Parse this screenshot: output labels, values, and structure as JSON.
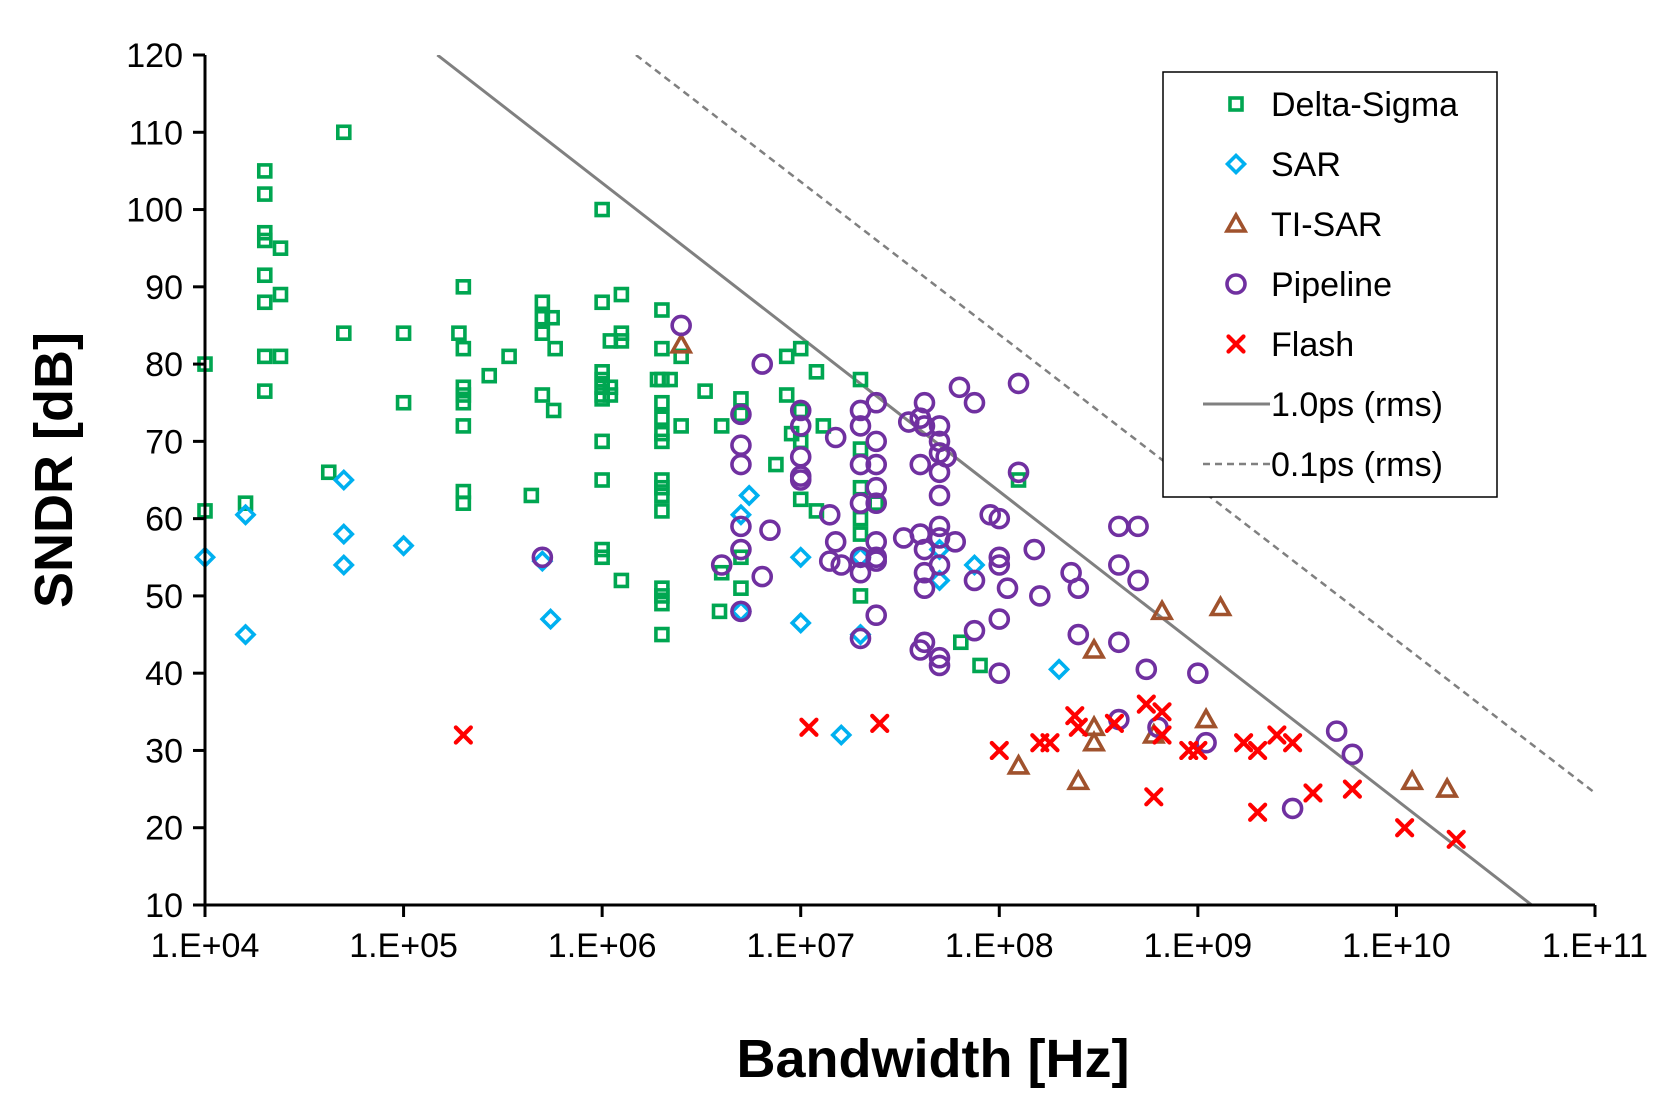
{
  "chart_data": {
    "type": "scatter",
    "title": "",
    "xlabel": "Bandwidth [Hz]",
    "ylabel": "SNDR [dB]",
    "x_scale": "log",
    "xlim": [
      10000,
      100000000000
    ],
    "ylim": [
      10,
      120
    ],
    "x_ticks": [
      {
        "value": 10000,
        "label": "1.E+04"
      },
      {
        "value": 100000,
        "label": "1.E+05"
      },
      {
        "value": 1000000,
        "label": "1.E+06"
      },
      {
        "value": 10000000,
        "label": "1.E+07"
      },
      {
        "value": 100000000,
        "label": "1.E+08"
      },
      {
        "value": 1000000000,
        "label": "1.E+09"
      },
      {
        "value": 10000000000,
        "label": "1.E+10"
      },
      {
        "value": 100000000000,
        "label": "1.E+11"
      }
    ],
    "y_ticks": [
      {
        "value": 10,
        "label": "10"
      },
      {
        "value": 20,
        "label": "20"
      },
      {
        "value": 30,
        "label": "30"
      },
      {
        "value": 40,
        "label": "40"
      },
      {
        "value": 50,
        "label": "50"
      },
      {
        "value": 60,
        "label": "60"
      },
      {
        "value": 70,
        "label": "70"
      },
      {
        "value": 80,
        "label": "80"
      },
      {
        "value": 90,
        "label": "90"
      },
      {
        "value": 100,
        "label": "100"
      },
      {
        "value": 110,
        "label": "110"
      },
      {
        "value": 120,
        "label": "120"
      }
    ],
    "grid": false,
    "legend_position": "top-right",
    "series": [
      {
        "name": "Delta-Sigma",
        "marker": "square",
        "color": "#00a651",
        "points": [
          [
            10000,
            80
          ],
          [
            10000,
            61
          ],
          [
            16000,
            62
          ],
          [
            20000,
            105
          ],
          [
            20000,
            102
          ],
          [
            20000,
            97
          ],
          [
            20000,
            96
          ],
          [
            20000,
            91.5
          ],
          [
            20000,
            88
          ],
          [
            20000,
            81
          ],
          [
            20000,
            76.5
          ],
          [
            24000,
            95
          ],
          [
            24000,
            89
          ],
          [
            24000,
            81
          ],
          [
            42000,
            66
          ],
          [
            50000,
            110
          ],
          [
            50000,
            84
          ],
          [
            100000,
            84
          ],
          [
            100000,
            75
          ],
          [
            190000,
            84
          ],
          [
            200000,
            90
          ],
          [
            200000,
            82
          ],
          [
            200000,
            77
          ],
          [
            200000,
            76
          ],
          [
            200000,
            75
          ],
          [
            200000,
            72
          ],
          [
            200000,
            63.5
          ],
          [
            200000,
            62
          ],
          [
            270000,
            78.5
          ],
          [
            340000,
            81
          ],
          [
            440000,
            63
          ],
          [
            500000,
            88
          ],
          [
            500000,
            86
          ],
          [
            500000,
            84
          ],
          [
            500000,
            76
          ],
          [
            560000,
            86
          ],
          [
            580000,
            82
          ],
          [
            570000,
            74
          ],
          [
            1000000,
            100
          ],
          [
            1000000,
            88
          ],
          [
            1000000,
            79
          ],
          [
            1000000,
            78
          ],
          [
            1000000,
            77
          ],
          [
            1000000,
            76
          ],
          [
            1000000,
            75.5
          ],
          [
            1000000,
            70
          ],
          [
            1000000,
            65
          ],
          [
            1000000,
            56
          ],
          [
            1000000,
            55
          ],
          [
            1100000,
            83
          ],
          [
            1100000,
            77
          ],
          [
            1100000,
            76
          ],
          [
            1250000,
            89
          ],
          [
            1250000,
            84
          ],
          [
            1250000,
            83
          ],
          [
            1250000,
            52
          ],
          [
            1900000,
            78
          ],
          [
            2000000,
            87
          ],
          [
            2000000,
            82
          ],
          [
            2000000,
            78
          ],
          [
            2000000,
            75
          ],
          [
            2000000,
            73
          ],
          [
            2000000,
            71
          ],
          [
            2000000,
            70
          ],
          [
            2000000,
            65
          ],
          [
            2000000,
            64
          ],
          [
            2000000,
            63
          ],
          [
            2000000,
            61
          ],
          [
            2000000,
            51
          ],
          [
            2000000,
            50
          ],
          [
            2000000,
            49
          ],
          [
            2000000,
            45
          ],
          [
            2200000,
            78
          ],
          [
            2500000,
            81
          ],
          [
            2500000,
            72
          ],
          [
            3300000,
            76.5
          ],
          [
            3900000,
            48
          ],
          [
            4000000,
            72
          ],
          [
            4000000,
            53
          ],
          [
            5000000,
            75.5
          ],
          [
            5000000,
            73.5
          ],
          [
            5000000,
            55
          ],
          [
            5000000,
            51
          ],
          [
            7500000,
            67
          ],
          [
            8500000,
            81
          ],
          [
            8500000,
            76
          ],
          [
            9000000,
            71
          ],
          [
            10000000,
            82
          ],
          [
            10000000,
            74
          ],
          [
            10000000,
            70
          ],
          [
            10000000,
            62.5
          ],
          [
            12000000,
            79
          ],
          [
            12000000,
            61
          ],
          [
            13000000,
            72
          ],
          [
            20000000,
            78
          ],
          [
            20000000,
            69
          ],
          [
            20000000,
            64
          ],
          [
            20000000,
            60
          ],
          [
            20000000,
            58
          ],
          [
            20000000,
            50
          ],
          [
            24000000,
            62
          ],
          [
            64000000,
            44
          ],
          [
            80000000,
            41
          ],
          [
            125000000,
            65
          ]
        ]
      },
      {
        "name": "SAR",
        "marker": "diamond",
        "color": "#00b0f0",
        "points": [
          [
            10000,
            55
          ],
          [
            16000,
            60.5
          ],
          [
            16000,
            45
          ],
          [
            50000,
            65
          ],
          [
            50000,
            58
          ],
          [
            50000,
            54
          ],
          [
            100000,
            56.5
          ],
          [
            500000,
            54.5
          ],
          [
            550000,
            47
          ],
          [
            5000000,
            60.5
          ],
          [
            5000000,
            48
          ],
          [
            5500000,
            63
          ],
          [
            10000000,
            55
          ],
          [
            10000000,
            46.5
          ],
          [
            16000000,
            32
          ],
          [
            20000000,
            55
          ],
          [
            20000000,
            45
          ],
          [
            50000000,
            56
          ],
          [
            50000000,
            52
          ],
          [
            75000000,
            54
          ],
          [
            200000000,
            40.5
          ]
        ]
      },
      {
        "name": "TI-SAR",
        "marker": "triangle",
        "color": "#a0522d",
        "points": [
          [
            2500000,
            82.5
          ],
          [
            125000000,
            28
          ],
          [
            250000000,
            26
          ],
          [
            300000000,
            43
          ],
          [
            300000000,
            33
          ],
          [
            300000000,
            31
          ],
          [
            600000000,
            32
          ],
          [
            660000000,
            48
          ],
          [
            1100000000,
            34
          ],
          [
            1300000000,
            48.5
          ],
          [
            12000000000,
            26
          ],
          [
            18000000000,
            25
          ]
        ]
      },
      {
        "name": "Pipeline",
        "marker": "circle",
        "color": "#7030a0",
        "points": [
          [
            500000,
            55
          ],
          [
            2500000,
            85
          ],
          [
            4000000,
            54
          ],
          [
            5000000,
            73.5
          ],
          [
            5000000,
            69.5
          ],
          [
            5000000,
            67
          ],
          [
            5000000,
            59
          ],
          [
            5000000,
            56
          ],
          [
            5000000,
            48
          ],
          [
            6400000,
            80
          ],
          [
            6400000,
            52.5
          ],
          [
            7000000,
            58.5
          ],
          [
            10000000,
            74
          ],
          [
            10000000,
            72
          ],
          [
            10000000,
            68
          ],
          [
            10000000,
            65.5
          ],
          [
            10000000,
            65
          ],
          [
            14000000,
            54.5
          ],
          [
            14000000,
            60.5
          ],
          [
            15000000,
            70.5
          ],
          [
            15000000,
            57
          ],
          [
            16000000,
            54
          ],
          [
            20000000,
            74
          ],
          [
            20000000,
            72
          ],
          [
            20000000,
            67
          ],
          [
            20000000,
            62
          ],
          [
            20000000,
            55
          ],
          [
            20000000,
            53
          ],
          [
            20000000,
            44.5
          ],
          [
            24000000,
            75
          ],
          [
            24000000,
            70
          ],
          [
            24000000,
            67
          ],
          [
            24000000,
            64
          ],
          [
            24000000,
            62
          ],
          [
            24000000,
            57
          ],
          [
            24000000,
            55
          ],
          [
            24000000,
            54.5
          ],
          [
            24000000,
            47.5
          ],
          [
            33000000,
            57.5
          ],
          [
            35000000,
            72.5
          ],
          [
            40000000,
            73
          ],
          [
            40000000,
            67
          ],
          [
            40000000,
            58
          ],
          [
            40000000,
            43
          ],
          [
            42000000,
            75
          ],
          [
            42000000,
            72
          ],
          [
            42000000,
            56
          ],
          [
            42000000,
            53
          ],
          [
            42000000,
            51
          ],
          [
            42000000,
            44
          ],
          [
            50000000,
            72
          ],
          [
            50000000,
            70
          ],
          [
            50000000,
            68.5
          ],
          [
            50000000,
            66
          ],
          [
            50000000,
            63
          ],
          [
            50000000,
            59
          ],
          [
            50000000,
            57.5
          ],
          [
            50000000,
            54
          ],
          [
            50000000,
            42
          ],
          [
            50000000,
            41
          ],
          [
            54000000,
            68
          ],
          [
            60000000,
            57
          ],
          [
            63000000,
            77
          ],
          [
            75000000,
            75
          ],
          [
            75000000,
            52
          ],
          [
            75000000,
            45.5
          ],
          [
            90000000,
            60.5
          ],
          [
            100000000,
            60
          ],
          [
            100000000,
            55
          ],
          [
            100000000,
            54
          ],
          [
            100000000,
            47
          ],
          [
            100000000,
            40
          ],
          [
            110000000,
            51
          ],
          [
            125000000,
            77.5
          ],
          [
            125000000,
            66
          ],
          [
            150000000,
            56
          ],
          [
            160000000,
            50
          ],
          [
            230000000,
            53
          ],
          [
            250000000,
            51
          ],
          [
            250000000,
            45
          ],
          [
            400000000,
            59
          ],
          [
            400000000,
            54
          ],
          [
            400000000,
            44
          ],
          [
            400000000,
            34
          ],
          [
            500000000,
            59
          ],
          [
            500000000,
            52
          ],
          [
            550000000,
            40.5
          ],
          [
            630000000,
            33
          ],
          [
            1000000000,
            40
          ],
          [
            1100000000,
            31
          ],
          [
            3000000000,
            22.5
          ],
          [
            5000000000,
            32.5
          ],
          [
            6000000000,
            29.5
          ]
        ]
      },
      {
        "name": "Flash",
        "marker": "x",
        "color": "#ff0000",
        "points": [
          [
            200000,
            32
          ],
          [
            11000000,
            33
          ],
          [
            25000000,
            33.5
          ],
          [
            100000000,
            30
          ],
          [
            160000000,
            31
          ],
          [
            180000000,
            31
          ],
          [
            240000000,
            34.5
          ],
          [
            250000000,
            33
          ],
          [
            380000000,
            33.5
          ],
          [
            550000000,
            36
          ],
          [
            600000000,
            24
          ],
          [
            660000000,
            35
          ],
          [
            660000000,
            32
          ],
          [
            900000000,
            30
          ],
          [
            1000000000,
            30
          ],
          [
            1700000000,
            31
          ],
          [
            2000000000,
            30
          ],
          [
            2000000000,
            22
          ],
          [
            2500000000,
            32
          ],
          [
            3000000000,
            31
          ],
          [
            3800000000,
            24.5
          ],
          [
            6000000000,
            25
          ],
          [
            11000000000,
            20
          ],
          [
            20000000000,
            18.5
          ]
        ]
      }
    ],
    "reference_lines": [
      {
        "name": "1.0ps (rms)",
        "style": "solid",
        "color": "#808080",
        "points": [
          [
            148000,
            120
          ],
          [
            48000000000,
            10
          ]
        ]
      },
      {
        "name": "0.1ps (rms)",
        "style": "dashed",
        "color": "#808080",
        "points": [
          [
            1480000,
            120
          ],
          [
            100000000000,
            24.5
          ]
        ]
      }
    ]
  }
}
